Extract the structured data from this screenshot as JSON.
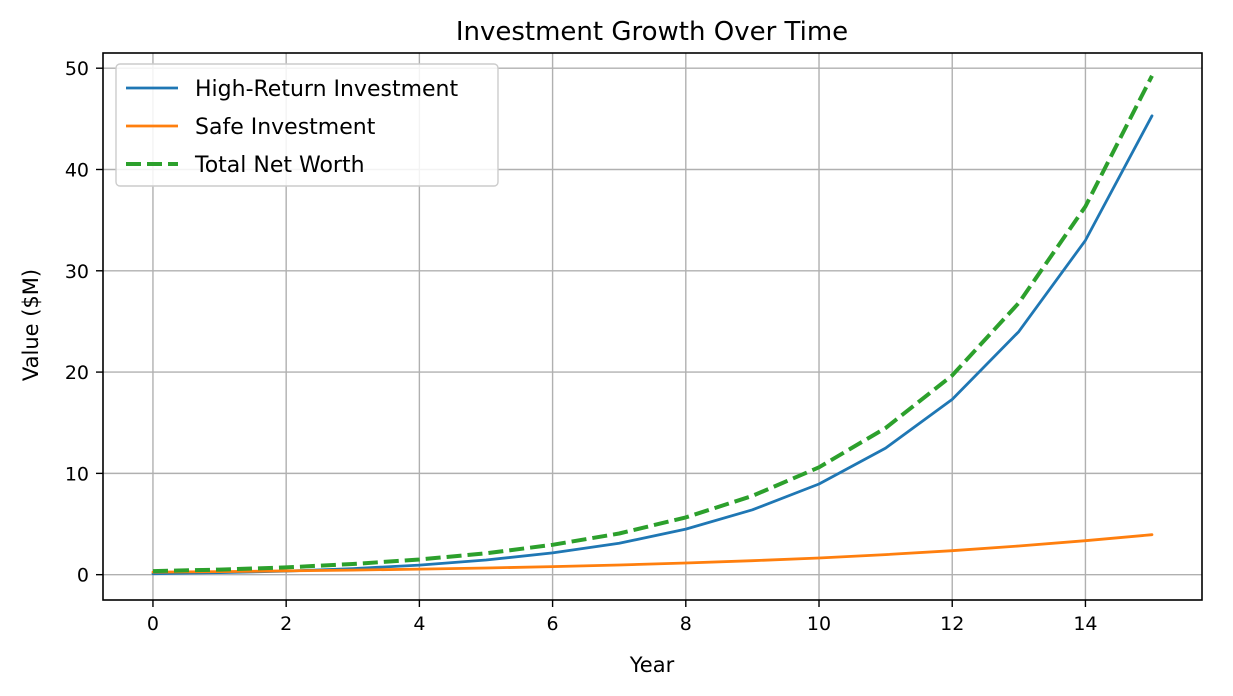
{
  "chart_data": {
    "type": "line",
    "title": "Investment Growth Over Time",
    "xlabel": "Year",
    "ylabel": "Value ($M)",
    "xlim": [
      -0.75,
      15.75
    ],
    "ylim": [
      -2.5,
      51.5
    ],
    "xticks": [
      0,
      2,
      4,
      6,
      8,
      10,
      12,
      14
    ],
    "yticks": [
      0,
      10,
      20,
      30,
      40,
      50
    ],
    "grid": true,
    "legend_position": "top-left",
    "x": [
      0,
      1,
      2,
      3,
      4,
      5,
      6,
      7,
      8,
      9,
      10,
      11,
      12,
      13,
      14,
      15
    ],
    "series": [
      {
        "name": "High-Return Investment",
        "color": "#1f77b4",
        "style": "solid",
        "values": [
          0.1,
          0.2,
          0.35,
          0.6,
          0.95,
          1.45,
          2.15,
          3.1,
          4.5,
          6.4,
          8.95,
          12.5,
          17.3,
          24.0,
          33.0,
          45.3
        ]
      },
      {
        "name": "Safe Investment",
        "color": "#ff7f0e",
        "style": "solid",
        "values": [
          0.25,
          0.3,
          0.37,
          0.45,
          0.55,
          0.66,
          0.8,
          0.96,
          1.15,
          1.38,
          1.65,
          1.98,
          2.37,
          2.83,
          3.35,
          3.95
        ]
      },
      {
        "name": "Total Net Worth",
        "color": "#2ca02c",
        "style": "dashed",
        "values": [
          0.35,
          0.5,
          0.72,
          1.05,
          1.5,
          2.11,
          2.95,
          4.06,
          5.65,
          7.78,
          10.6,
          14.48,
          19.67,
          26.83,
          36.35,
          49.25
        ]
      }
    ]
  }
}
